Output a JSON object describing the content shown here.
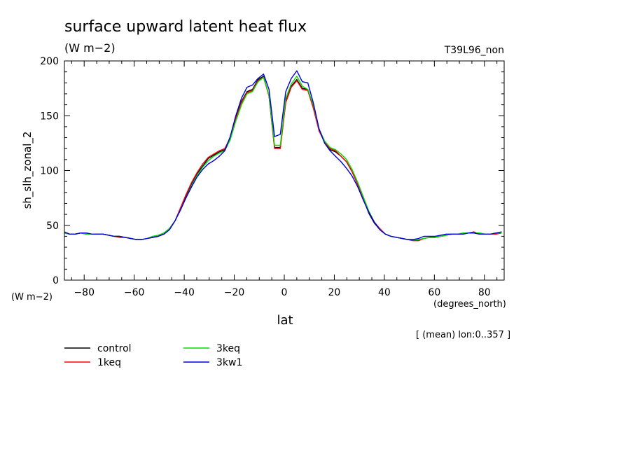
{
  "chart_data": {
    "type": "line",
    "title": "surface upward latent heat flux",
    "subtitle": "(W m−2)",
    "run_label": "T39L96_non",
    "ylabel": "sh_slh_zonal_2",
    "yunits": "(W m−2)",
    "xlabel": "lat",
    "xunits": "(degrees_north)",
    "note": "[ (mean) lon:0..357 ]",
    "xlim": [
      -87.9,
      87.9
    ],
    "ylim": [
      0,
      200
    ],
    "xticks": [
      -80,
      -60,
      -40,
      -20,
      0,
      20,
      40,
      60,
      80
    ],
    "xtick_labels": [
      "−80",
      "−60",
      "−40",
      "−20",
      "0",
      "20",
      "40",
      "60",
      "80"
    ],
    "yticks": [
      0,
      50,
      100,
      150,
      200
    ],
    "ytick_labels": [
      "0",
      "50",
      "100",
      "150",
      "200"
    ],
    "grid": false,
    "legend_position": "bottom-left",
    "x": [
      -87.9,
      -85.8,
      -83.6,
      -81.4,
      -79.1,
      -76.9,
      -74.7,
      -72.5,
      -70.3,
      -68.1,
      -65.9,
      -63.6,
      -61.4,
      -59.2,
      -57.0,
      -54.8,
      -52.6,
      -50.4,
      -48.1,
      -45.9,
      -43.7,
      -41.5,
      -39.3,
      -37.1,
      -34.9,
      -32.6,
      -30.4,
      -28.2,
      -26.0,
      -23.8,
      -21.6,
      -19.4,
      -17.1,
      -14.9,
      -12.7,
      -10.5,
      -8.3,
      -6.1,
      -3.9,
      -1.6,
      0.6,
      2.8,
      5.0,
      7.2,
      9.4,
      11.6,
      13.9,
      16.1,
      18.3,
      20.5,
      22.7,
      24.9,
      27.1,
      29.4,
      31.6,
      33.8,
      36.0,
      38.2,
      40.4,
      42.6,
      44.9,
      47.1,
      49.3,
      51.5,
      53.7,
      55.9,
      58.1,
      60.3,
      62.6,
      64.8,
      67.0,
      69.2,
      71.4,
      73.6,
      75.8,
      78.1,
      80.3,
      82.5,
      84.7,
      86.9
    ],
    "series": [
      {
        "name": "control",
        "color": "#000000",
        "values": [
          43,
          42,
          42,
          43,
          42,
          42,
          42,
          42,
          41,
          40,
          40,
          39,
          38,
          37,
          37,
          38,
          39,
          40,
          43,
          47,
          54,
          65,
          77,
          88,
          97,
          104,
          111,
          114,
          117,
          119,
          130,
          148,
          163,
          172,
          174,
          183,
          186,
          168,
          121,
          121,
          163,
          177,
          183,
          175,
          174,
          158,
          137,
          126,
          119,
          117,
          113,
          108,
          99,
          87,
          74,
          61,
          52,
          46,
          42,
          40,
          39,
          38,
          37,
          37,
          37,
          38,
          39,
          39,
          40,
          41,
          42,
          42,
          42,
          43,
          43,
          42,
          42,
          42,
          43,
          43
        ]
      },
      {
        "name": "1keq",
        "color": "#ff0000",
        "values": [
          43,
          42,
          42,
          43,
          42,
          42,
          42,
          42,
          41,
          40,
          39,
          39,
          38,
          37,
          37,
          38,
          39,
          40,
          42,
          46,
          54,
          66,
          78,
          89,
          98,
          106,
          112,
          115,
          118,
          120,
          130,
          147,
          162,
          171,
          173,
          182,
          185,
          168,
          120,
          120,
          162,
          176,
          182,
          174,
          173,
          157,
          136,
          126,
          120,
          118,
          113,
          108,
          99,
          87,
          74,
          62,
          53,
          47,
          42,
          40,
          39,
          38,
          37,
          36,
          36,
          38,
          39,
          39,
          40,
          41,
          42,
          42,
          42,
          43,
          44,
          42,
          42,
          42,
          42,
          43
        ]
      },
      {
        "name": "3keq",
        "color": "#00dd00",
        "values": [
          43,
          42,
          42,
          43,
          42,
          42,
          42,
          42,
          41,
          40,
          40,
          39,
          38,
          37,
          37,
          38,
          40,
          41,
          43,
          47,
          54,
          64,
          75,
          86,
          95,
          103,
          109,
          113,
          116,
          118,
          128,
          145,
          160,
          170,
          172,
          181,
          185,
          169,
          123,
          123,
          166,
          179,
          186,
          177,
          174,
          160,
          138,
          127,
          121,
          119,
          115,
          110,
          101,
          89,
          76,
          63,
          53,
          46,
          42,
          40,
          39,
          38,
          37,
          37,
          37,
          38,
          39,
          39,
          40,
          41,
          42,
          42,
          43,
          43,
          43,
          43,
          42,
          42,
          43,
          43
        ]
      },
      {
        "name": "3kw1",
        "color": "#0000dd",
        "values": [
          44,
          42,
          42,
          43,
          43,
          42,
          42,
          42,
          41,
          40,
          40,
          39,
          38,
          37,
          37,
          38,
          39,
          40,
          42,
          46,
          54,
          64,
          75,
          85,
          94,
          101,
          106,
          109,
          113,
          118,
          131,
          150,
          166,
          176,
          178,
          184,
          188,
          174,
          131,
          133,
          172,
          184,
          191,
          181,
          180,
          162,
          138,
          125,
          118,
          113,
          108,
          102,
          95,
          85,
          73,
          62,
          53,
          46,
          42,
          40,
          39,
          38,
          37,
          37,
          38,
          40,
          40,
          40,
          41,
          42,
          42,
          42,
          42,
          43,
          43,
          42,
          42,
          42,
          43,
          44
        ]
      }
    ]
  }
}
